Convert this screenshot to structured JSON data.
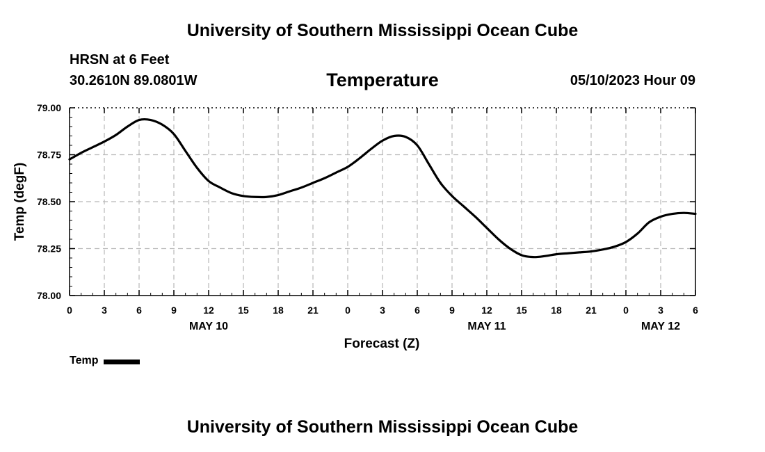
{
  "header": {
    "title": "University of Southern Mississippi Ocean Cube",
    "station": "HRSN at 6 Feet",
    "coordinates": "30.2610N  89.0801W",
    "chart_title": "Temperature",
    "datetime": "05/10/2023 Hour 09"
  },
  "footer": {
    "title": "University of Southern Mississippi Ocean Cube"
  },
  "legend": {
    "label": "Temp",
    "color": "#000000"
  },
  "chart_data": {
    "type": "line",
    "title": "Temperature",
    "xlabel": "Forecast (Z)",
    "ylabel": "Temp (degF)",
    "ylim": [
      78.0,
      79.0
    ],
    "yticks": [
      "78.00",
      "78.25",
      "78.50",
      "78.75",
      "79.00"
    ],
    "ytick_values": [
      78.0,
      78.25,
      78.5,
      78.75,
      79.0
    ],
    "xlim": [
      0,
      54
    ],
    "xtick_values": [
      0,
      3,
      6,
      9,
      12,
      15,
      18,
      21,
      24,
      27,
      30,
      33,
      36,
      39,
      42,
      45,
      48,
      51,
      54
    ],
    "xtick_labels": [
      "0",
      "3",
      "6",
      "9",
      "12",
      "15",
      "18",
      "21",
      "0",
      "3",
      "6",
      "9",
      "12",
      "15",
      "18",
      "21",
      "0",
      "3",
      "6"
    ],
    "day_labels": [
      {
        "label": "MAY 10",
        "x": 12
      },
      {
        "label": "MAY 11",
        "x": 36
      },
      {
        "label": "MAY 12",
        "x": 51
      }
    ],
    "grid": true,
    "series": [
      {
        "name": "Temp",
        "color": "#000000",
        "x": [
          0,
          1,
          2,
          3,
          4,
          5,
          6,
          7,
          8,
          9,
          10,
          11,
          12,
          13,
          14,
          15,
          16,
          17,
          18,
          19,
          20,
          21,
          22,
          23,
          24,
          25,
          26,
          27,
          28,
          29,
          30,
          31,
          32,
          33,
          34,
          35,
          36,
          37,
          38,
          39,
          40,
          41,
          42,
          43,
          44,
          45,
          46,
          47,
          48,
          49,
          50,
          51,
          52,
          53,
          54
        ],
        "values": [
          78.725,
          78.76,
          78.79,
          78.82,
          78.855,
          78.9,
          78.935,
          78.935,
          78.91,
          78.86,
          78.77,
          78.68,
          78.61,
          78.575,
          78.545,
          78.53,
          78.525,
          78.525,
          78.535,
          78.555,
          78.575,
          78.6,
          78.625,
          78.655,
          78.685,
          78.73,
          78.78,
          78.825,
          78.85,
          78.845,
          78.8,
          78.7,
          78.6,
          78.53,
          78.475,
          78.42,
          78.36,
          78.3,
          78.25,
          78.215,
          78.205,
          78.21,
          78.22,
          78.225,
          78.23,
          78.235,
          78.245,
          78.26,
          78.285,
          78.33,
          78.39,
          78.42,
          78.435,
          78.44,
          78.435
        ]
      }
    ]
  }
}
